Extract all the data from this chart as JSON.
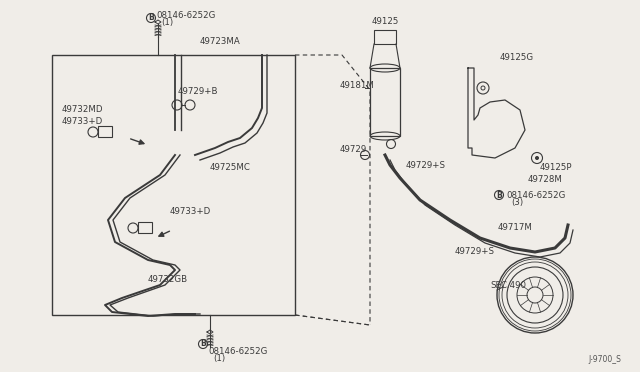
{
  "bg_color": "#f0ede8",
  "line_color": "#3a3a3a",
  "fig_w": 6.4,
  "fig_h": 3.72,
  "dpi": 100,
  "footer": "J-9700_S",
  "labels": {
    "B_top_circ": "B",
    "B_top_text": "08146-6252G",
    "B_top_sub": "(1)",
    "lbl_49723MA": "49723MA",
    "lbl_49732MD": "49732MD",
    "lbl_49733D_up": "49733+D",
    "lbl_49729B": "49729+B",
    "lbl_49725MC": "49725MC",
    "lbl_49733D_dn": "49733+D",
    "lbl_49732GB": "49732GB",
    "B_bot_circ": "B",
    "B_bot_text": "08146-6252G",
    "B_bot_sub": "(1)",
    "lbl_49125": "49125",
    "lbl_49181M": "49181M",
    "lbl_49729S_top": "49729+S",
    "lbl_49729": "49729",
    "lbl_49125G": "49125G",
    "lbl_49125P": "49125P",
    "lbl_49728M": "49728M",
    "B_rt_circ": "B",
    "B_rt_text": "08146-6252G",
    "B_rt_sub": "(3)",
    "lbl_49717M": "49717M",
    "lbl_49729S_bot": "49729+S",
    "lbl_SEC490": "SEC.490"
  }
}
